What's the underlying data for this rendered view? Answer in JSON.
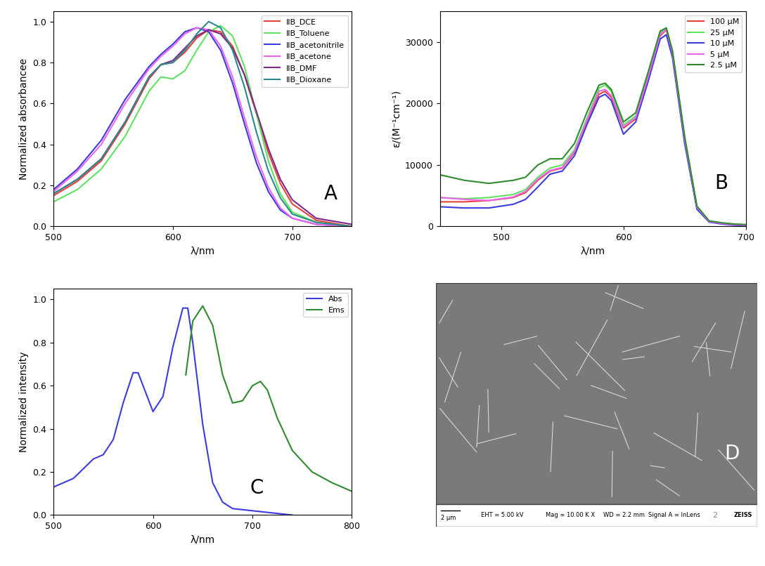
{
  "chart_data": [
    {
      "type": "line",
      "label": "A",
      "x_label": "λ/nm",
      "y_label": "Normalized absorbancee",
      "xlim": [
        500,
        750
      ],
      "xticks": [
        500,
        600,
        700
      ],
      "ylim": [
        0,
        1.05
      ],
      "yticks": [
        0.0,
        0.2,
        0.4,
        0.6,
        0.8,
        1.0
      ],
      "legend": "upper right",
      "x": [
        500,
        520,
        540,
        560,
        580,
        590,
        600,
        610,
        620,
        630,
        640,
        650,
        660,
        670,
        680,
        690,
        700,
        720,
        750
      ],
      "series": [
        {
          "name": "IIB_DCE",
          "color": "#e8413c",
          "values": [
            0.15,
            0.22,
            0.32,
            0.5,
            0.72,
            0.79,
            0.8,
            0.85,
            0.92,
            0.96,
            0.95,
            0.88,
            0.74,
            0.55,
            0.36,
            0.21,
            0.11,
            0.03,
            0.0
          ]
        },
        {
          "name": "IIB_Toluene",
          "color": "#5fe25f",
          "values": [
            0.12,
            0.18,
            0.28,
            0.44,
            0.66,
            0.73,
            0.72,
            0.76,
            0.86,
            0.95,
            0.98,
            0.93,
            0.78,
            0.55,
            0.32,
            0.16,
            0.07,
            0.02,
            0.0
          ]
        },
        {
          "name": "IIB_acetonitrile",
          "color": "#3b3bdf",
          "values": [
            0.18,
            0.28,
            0.42,
            0.62,
            0.78,
            0.84,
            0.89,
            0.95,
            0.97,
            0.95,
            0.86,
            0.7,
            0.5,
            0.31,
            0.17,
            0.08,
            0.04,
            0.01,
            0.0
          ]
        },
        {
          "name": "IIB_acetone",
          "color": "#ee66ee",
          "values": [
            0.17,
            0.27,
            0.4,
            0.6,
            0.77,
            0.83,
            0.88,
            0.94,
            0.97,
            0.96,
            0.88,
            0.73,
            0.53,
            0.34,
            0.19,
            0.09,
            0.04,
            0.01,
            0.0
          ]
        },
        {
          "name": "IIB_DMF",
          "color": "#7b2a8a",
          "values": [
            0.16,
            0.23,
            0.33,
            0.51,
            0.73,
            0.79,
            0.81,
            0.87,
            0.93,
            0.96,
            0.94,
            0.87,
            0.74,
            0.56,
            0.38,
            0.23,
            0.13,
            0.04,
            0.01
          ]
        },
        {
          "name": "IIB_Dioxane",
          "color": "#2a8a8a",
          "values": [
            0.16,
            0.23,
            0.33,
            0.51,
            0.73,
            0.79,
            0.8,
            0.86,
            0.94,
            1.0,
            0.97,
            0.86,
            0.68,
            0.46,
            0.27,
            0.14,
            0.06,
            0.02,
            0.0
          ]
        }
      ]
    },
    {
      "type": "line",
      "label": "B",
      "x_label": "λ/nm",
      "y_label": "ε/(M⁻¹cm⁻¹)",
      "xlim": [
        450,
        700
      ],
      "xticks": [
        500,
        600,
        700
      ],
      "ylim": [
        0,
        35000
      ],
      "yticks": [
        0,
        10000,
        20000,
        30000
      ],
      "legend": "upper right",
      "x": [
        450,
        470,
        490,
        510,
        520,
        530,
        540,
        550,
        560,
        570,
        580,
        585,
        590,
        600,
        610,
        620,
        630,
        635,
        640,
        650,
        660,
        670,
        680,
        690,
        700
      ],
      "series": [
        {
          "name": "100 μM",
          "color": "#e8413c",
          "values": [
            4000,
            4000,
            4200,
            4700,
            5500,
            7500,
            9000,
            9500,
            12000,
            17000,
            21500,
            22000,
            21000,
            16000,
            17500,
            24000,
            31000,
            32000,
            28000,
            14000,
            3000,
            800,
            500,
            300,
            200
          ]
        },
        {
          "name": "25 μM",
          "color": "#5fe25f",
          "values": [
            4700,
            4500,
            4700,
            5200,
            6000,
            8000,
            9500,
            10000,
            12500,
            17500,
            22500,
            23000,
            22000,
            16500,
            18000,
            24500,
            31500,
            32300,
            28500,
            14500,
            3200,
            800,
            500,
            300,
            200
          ]
        },
        {
          "name": "10 μM",
          "color": "#3b3bdf",
          "values": [
            3200,
            3000,
            3000,
            3600,
            4400,
            6400,
            8500,
            9000,
            11500,
            16500,
            21000,
            21500,
            20500,
            15000,
            17000,
            23500,
            30500,
            31200,
            27500,
            13500,
            2800,
            700,
            400,
            200,
            100
          ]
        },
        {
          "name": "5 μM",
          "color": "#ee66ee",
          "values": [
            4700,
            4400,
            4200,
            4800,
            5700,
            7700,
            9100,
            9600,
            12200,
            17200,
            22000,
            22300,
            21300,
            16200,
            17700,
            24200,
            31200,
            32100,
            28200,
            14200,
            3100,
            800,
            500,
            300,
            200
          ]
        },
        {
          "name": "2.5 μM",
          "color": "#2e8b2e",
          "values": [
            8400,
            7500,
            7000,
            7500,
            8000,
            10000,
            11000,
            11000,
            13500,
            18500,
            23000,
            23300,
            22300,
            17000,
            18500,
            25000,
            31800,
            32300,
            28600,
            14600,
            3300,
            900,
            600,
            400,
            300
          ]
        }
      ]
    },
    {
      "type": "line",
      "label": "C",
      "x_label": "λ/nm",
      "y_label": "Normalized intensity",
      "xlim": [
        500,
        800
      ],
      "xticks": [
        500,
        600,
        700,
        800
      ],
      "ylim": [
        0,
        1.05
      ],
      "yticks": [
        0.0,
        0.2,
        0.4,
        0.6,
        0.8,
        1.0
      ],
      "legend": "upper right",
      "series": [
        {
          "name": "Abs",
          "color": "#3b3bdf",
          "x": [
            500,
            520,
            540,
            550,
            560,
            570,
            580,
            585,
            590,
            600,
            610,
            620,
            630,
            635,
            640,
            650,
            660,
            670,
            680,
            700,
            720,
            740
          ],
          "values": [
            0.13,
            0.17,
            0.26,
            0.28,
            0.35,
            0.52,
            0.66,
            0.66,
            0.6,
            0.48,
            0.55,
            0.78,
            0.96,
            0.96,
            0.8,
            0.42,
            0.15,
            0.06,
            0.03,
            0.02,
            0.01,
            0.0
          ]
        },
        {
          "name": "Ems",
          "color": "#2e8b2e",
          "x": [
            633,
            640,
            650,
            660,
            670,
            680,
            690,
            700,
            708,
            715,
            725,
            740,
            760,
            780,
            800
          ],
          "values": [
            0.65,
            0.9,
            0.97,
            0.88,
            0.65,
            0.52,
            0.53,
            0.6,
            0.62,
            0.58,
            0.45,
            0.3,
            0.2,
            0.15,
            0.11
          ]
        }
      ]
    }
  ],
  "image_panel": {
    "label": "D",
    "scale_bar": "2 μm",
    "info": [
      "EHT = 5.00 kV",
      "Mag = 10.00 K X",
      "WD = 2.2 mm",
      "Signal A = InLens"
    ],
    "page_number": "2",
    "logo": "ZEISS"
  }
}
